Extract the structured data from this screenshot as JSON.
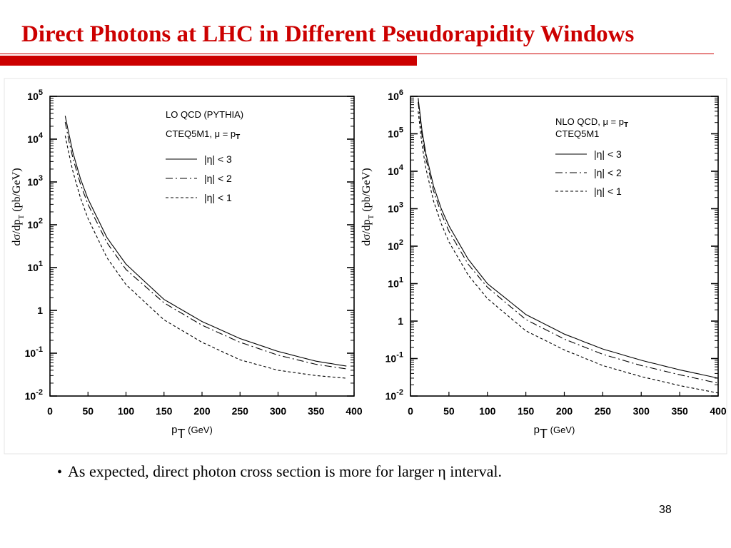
{
  "slide": {
    "title": "Direct Photons at LHC in Different Pseudorapidity Windows",
    "bullet": "As expected, direct photon cross section is more for larger η interval.",
    "page_number": "38",
    "accent_color": "#cc0000"
  },
  "chart_data": [
    {
      "type": "line",
      "log_y": true,
      "xlim": [
        0,
        400
      ],
      "ylim": [
        0.01,
        100000
      ],
      "x_ticks": [
        0,
        50,
        100,
        150,
        200,
        250,
        300,
        350,
        400
      ],
      "y_ticks": [
        {
          "value": 100000,
          "base": "10",
          "exp": "5"
        },
        {
          "value": 10000,
          "base": "10",
          "exp": "4"
        },
        {
          "value": 1000,
          "base": "10",
          "exp": "3"
        },
        {
          "value": 100,
          "base": "10",
          "exp": "2"
        },
        {
          "value": 10,
          "base": "10",
          "exp": "1"
        },
        {
          "value": 1,
          "base": "1",
          "exp": ""
        },
        {
          "value": 0.1,
          "base": "10",
          "exp": "-1"
        },
        {
          "value": 0.01,
          "base": "10",
          "exp": "-2"
        }
      ],
      "xlabel": "p",
      "xlabel_sub": "T",
      "xlabel_unit": "(GeV)",
      "ylabel": "dσ/dp",
      "ylabel_sub": "T",
      "ylabel_unit": "(pb/GeV)",
      "annotation": [
        "LO QCD (PYTHIA)",
        "CTEQ5M1, μ = p",
        "T"
      ],
      "grid": false,
      "legend_position": "top-right",
      "series": [
        {
          "name": "|η| < 3",
          "style": "solid",
          "x": [
            20,
            25,
            30,
            40,
            50,
            75,
            100,
            150,
            200,
            250,
            300,
            350,
            390
          ],
          "y": [
            35000,
            13000,
            5000,
            1200,
            400,
            50,
            12,
            1.8,
            0.55,
            0.22,
            0.11,
            0.065,
            0.05
          ]
        },
        {
          "name": "|η| < 2",
          "style": "dashdot",
          "x": [
            20,
            25,
            30,
            40,
            50,
            75,
            100,
            150,
            200,
            250,
            300,
            350,
            390
          ],
          "y": [
            25000,
            9000,
            3700,
            900,
            300,
            38,
            9,
            1.5,
            0.45,
            0.18,
            0.09,
            0.055,
            0.043
          ]
        },
        {
          "name": "|η| < 1",
          "style": "dashed",
          "x": [
            20,
            25,
            30,
            40,
            50,
            75,
            100,
            150,
            200,
            250,
            300,
            350,
            390
          ],
          "y": [
            12000,
            4500,
            1800,
            430,
            140,
            17,
            4,
            0.6,
            0.18,
            0.07,
            0.04,
            0.03,
            0.026
          ]
        }
      ]
    },
    {
      "type": "line",
      "log_y": true,
      "xlim": [
        0,
        400
      ],
      "ylim": [
        0.01,
        1000000
      ],
      "x_ticks": [
        0,
        50,
        100,
        150,
        200,
        250,
        300,
        350,
        400
      ],
      "y_ticks": [
        {
          "value": 1000000,
          "base": "10",
          "exp": "6"
        },
        {
          "value": 100000,
          "base": "10",
          "exp": "5"
        },
        {
          "value": 10000,
          "base": "10",
          "exp": "4"
        },
        {
          "value": 1000,
          "base": "10",
          "exp": "3"
        },
        {
          "value": 100,
          "base": "10",
          "exp": "2"
        },
        {
          "value": 10,
          "base": "10",
          "exp": "1"
        },
        {
          "value": 1,
          "base": "1",
          "exp": ""
        },
        {
          "value": 0.1,
          "base": "10",
          "exp": "-1"
        },
        {
          "value": 0.01,
          "base": "10",
          "exp": "-2"
        }
      ],
      "xlabel": "p",
      "xlabel_sub": "T",
      "xlabel_unit": "(GeV)",
      "ylabel": "dσ/dp",
      "ylabel_sub": "T",
      "ylabel_unit": "(pb/GeV)",
      "annotation": [
        "NLO QCD, μ = p",
        "T",
        "CTEQ5M1"
      ],
      "grid": false,
      "legend_position": "top-right",
      "series": [
        {
          "name": "|η| < 3",
          "style": "solid",
          "x": [
            10,
            15,
            20,
            30,
            40,
            50,
            75,
            100,
            150,
            200,
            250,
            300,
            350,
            400
          ],
          "y": [
            900000,
            120000,
            30000,
            4000,
            1000,
            350,
            45,
            10,
            1.5,
            0.45,
            0.18,
            0.09,
            0.05,
            0.03
          ]
        },
        {
          "name": "|η| < 2",
          "style": "dashdot",
          "x": [
            10,
            15,
            20,
            30,
            40,
            50,
            75,
            100,
            150,
            200,
            250,
            300,
            350,
            400
          ],
          "y": [
            700000,
            90000,
            22000,
            3000,
            750,
            250,
            33,
            8,
            1.1,
            0.33,
            0.13,
            0.065,
            0.037,
            0.022
          ]
        },
        {
          "name": "|η| < 1",
          "style": "dashed",
          "x": [
            10,
            15,
            20,
            30,
            40,
            50,
            75,
            100,
            150,
            200,
            250,
            300,
            350,
            400
          ],
          "y": [
            400000,
            50000,
            12000,
            1600,
            400,
            130,
            17,
            4,
            0.55,
            0.17,
            0.065,
            0.033,
            0.019,
            0.012
          ]
        }
      ]
    }
  ]
}
